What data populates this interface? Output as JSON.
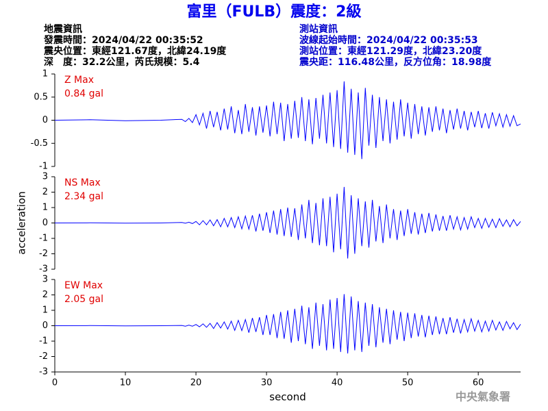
{
  "header": {
    "title": "富里（FULB）震度：2級",
    "left": [
      "地震資訊",
      "發震時間：2024/04/22 00:35:52",
      "震央位置：東經121.67度，北緯24.19度",
      "深　度：32.2公里，芮氏規模：5.4"
    ],
    "right": [
      "測站資訊",
      "波線起始時間：2024/04/22 00:35:53",
      "測站位置：東經121.29度，北緯23.20度",
      "震央距：116.48公里，反方位角：18.98度"
    ]
  },
  "watermark": "中央氣象署",
  "chart_data": [
    {
      "type": "line",
      "annotations": [
        "Z Max",
        "0.84 gal"
      ],
      "color": "#0000ff",
      "xlim": [
        0,
        66
      ],
      "ylim": [
        -1,
        1
      ],
      "yticks": [
        -1,
        -0.5,
        0,
        0.5,
        1
      ],
      "x": [
        0,
        5,
        10,
        15,
        18,
        18.5,
        19,
        19.5,
        20,
        20.5,
        21,
        21.5,
        22,
        22.5,
        23,
        23.5,
        24,
        24.5,
        25,
        25.5,
        26,
        26.5,
        27,
        27.5,
        28,
        28.5,
        29,
        29.5,
        30,
        30.5,
        31,
        31.5,
        32,
        32.5,
        33,
        33.5,
        34,
        34.5,
        35,
        35.5,
        36,
        36.5,
        37,
        37.5,
        38,
        38.5,
        39,
        39.5,
        40,
        40.5,
        41,
        41.5,
        42,
        42.5,
        43,
        43.5,
        44,
        44.5,
        45,
        45.5,
        46,
        46.5,
        47,
        47.5,
        48,
        48.5,
        49,
        49.5,
        50,
        50.5,
        51,
        51.5,
        52,
        52.5,
        53,
        53.5,
        54,
        54.5,
        55,
        55.5,
        56,
        56.5,
        57,
        57.5,
        58,
        58.5,
        59,
        59.5,
        60,
        60.5,
        61,
        61.5,
        62,
        62.5,
        63,
        63.5,
        64,
        64.5,
        65,
        65.5,
        66
      ],
      "values": [
        0,
        0.01,
        -0.01,
        0,
        0.02,
        -0.03,
        0.04,
        -0.05,
        0.12,
        -0.1,
        0.15,
        -0.18,
        0.2,
        -0.15,
        0.18,
        -0.22,
        0.25,
        -0.2,
        0.3,
        -0.28,
        0.22,
        -0.3,
        0.35,
        -0.25,
        0.28,
        -0.33,
        0.3,
        -0.27,
        0.32,
        -0.35,
        0.4,
        -0.3,
        0.38,
        -0.45,
        0.35,
        -0.4,
        0.42,
        -0.38,
        0.5,
        -0.45,
        0.45,
        -0.52,
        0.48,
        -0.4,
        0.55,
        -0.5,
        0.6,
        -0.58,
        0.65,
        -0.62,
        0.84,
        -0.7,
        0.68,
        -0.75,
        0.6,
        -0.84,
        0.7,
        -0.55,
        0.55,
        -0.6,
        0.5,
        -0.45,
        0.45,
        -0.5,
        0.4,
        -0.42,
        0.45,
        -0.35,
        0.38,
        -0.4,
        0.35,
        -0.3,
        0.3,
        -0.33,
        0.28,
        -0.25,
        0.3,
        -0.22,
        0.25,
        -0.28,
        0.22,
        -0.2,
        0.25,
        -0.18,
        0.2,
        -0.22,
        0.18,
        -0.15,
        0.2,
        -0.17,
        0.15,
        -0.18,
        0.17,
        -0.12,
        0.14,
        -0.15,
        0.12,
        -0.13,
        0.1,
        -0.12,
        -0.08
      ]
    },
    {
      "type": "line",
      "annotations": [
        "NS Max",
        "2.34 gal"
      ],
      "ylabel": "acceleration",
      "color": "#0000ff",
      "xlim": [
        0,
        66
      ],
      "ylim": [
        -3,
        3
      ],
      "yticks": [
        -3,
        -2,
        -1,
        0,
        1,
        2,
        3
      ],
      "x": [
        0,
        5,
        10,
        15,
        18,
        18.5,
        19,
        19.5,
        20,
        20.5,
        21,
        21.5,
        22,
        22.5,
        23,
        23.5,
        24,
        24.5,
        25,
        25.5,
        26,
        26.5,
        27,
        27.5,
        28,
        28.5,
        29,
        29.5,
        30,
        30.5,
        31,
        31.5,
        32,
        32.5,
        33,
        33.5,
        34,
        34.5,
        35,
        35.5,
        36,
        36.5,
        37,
        37.5,
        38,
        38.5,
        39,
        39.5,
        40,
        40.5,
        41,
        41.5,
        42,
        42.5,
        43,
        43.5,
        44,
        44.5,
        45,
        45.5,
        46,
        46.5,
        47,
        47.5,
        48,
        48.5,
        49,
        49.5,
        50,
        50.5,
        51,
        51.5,
        52,
        52.5,
        53,
        53.5,
        54,
        54.5,
        55,
        55.5,
        56,
        56.5,
        57,
        57.5,
        58,
        58.5,
        59,
        59.5,
        60,
        60.5,
        61,
        61.5,
        62,
        62.5,
        63,
        63.5,
        64,
        64.5,
        65,
        65.5,
        66
      ],
      "values": [
        0,
        0.01,
        -0.01,
        0,
        0.03,
        -0.02,
        0.05,
        -0.04,
        0.1,
        -0.12,
        0.15,
        -0.12,
        0.2,
        -0.18,
        0.22,
        -0.25,
        0.3,
        -0.25,
        0.35,
        -0.3,
        0.4,
        -0.38,
        0.45,
        -0.4,
        0.5,
        -0.55,
        0.6,
        -0.5,
        0.7,
        -0.65,
        0.8,
        -0.75,
        0.9,
        -0.85,
        1.0,
        -0.9,
        0.95,
        -1.1,
        1.2,
        -1.0,
        1.5,
        -1.3,
        1.3,
        -1.45,
        1.6,
        -1.5,
        1.7,
        -1.9,
        1.9,
        -1.7,
        2.34,
        -2.3,
        1.8,
        -2.0,
        1.6,
        -1.5,
        1.4,
        -1.6,
        1.5,
        -1.2,
        1.1,
        -1.3,
        1.2,
        -1.0,
        0.9,
        -1.1,
        0.8,
        -0.85,
        0.9,
        -0.7,
        0.7,
        -0.75,
        0.6,
        -0.65,
        0.65,
        -0.55,
        0.55,
        -0.5,
        0.45,
        -0.5,
        0.5,
        -0.4,
        0.4,
        -0.45,
        0.35,
        -0.4,
        0.4,
        -0.3,
        0.3,
        -0.35,
        0.3,
        -0.28,
        0.25,
        -0.3,
        0.28,
        -0.22,
        0.2,
        -0.25,
        0.22,
        -0.18,
        0.1
      ]
    },
    {
      "type": "line",
      "annotations": [
        "EW Max",
        "2.05 gal"
      ],
      "xlabel": "second",
      "color": "#0000ff",
      "xlim": [
        0,
        66
      ],
      "xticks": [
        0,
        10,
        20,
        30,
        40,
        50,
        60
      ],
      "ylim": [
        -3,
        3
      ],
      "yticks": [
        -3,
        -2,
        -1,
        0,
        1,
        2,
        3
      ],
      "x": [
        0,
        5,
        10,
        15,
        18,
        18.5,
        19,
        19.5,
        20,
        20.5,
        21,
        21.5,
        22,
        22.5,
        23,
        23.5,
        24,
        24.5,
        25,
        25.5,
        26,
        26.5,
        27,
        27.5,
        28,
        28.5,
        29,
        29.5,
        30,
        30.5,
        31,
        31.5,
        32,
        32.5,
        33,
        33.5,
        34,
        34.5,
        35,
        35.5,
        36,
        36.5,
        37,
        37.5,
        38,
        38.5,
        39,
        39.5,
        40,
        40.5,
        41,
        41.5,
        42,
        42.5,
        43,
        43.5,
        44,
        44.5,
        45,
        45.5,
        46,
        46.5,
        47,
        47.5,
        48,
        48.5,
        49,
        49.5,
        50,
        50.5,
        51,
        51.5,
        52,
        52.5,
        53,
        53.5,
        54,
        54.5,
        55,
        55.5,
        56,
        56.5,
        57,
        57.5,
        58,
        58.5,
        59,
        59.5,
        60,
        60.5,
        61,
        61.5,
        62,
        62.5,
        63,
        63.5,
        64,
        64.5,
        65,
        65.5,
        66
      ],
      "values": [
        0,
        0.01,
        -0.01,
        0,
        0.02,
        -0.03,
        0.04,
        -0.03,
        0.08,
        -0.07,
        0.12,
        -0.1,
        0.15,
        -0.18,
        0.2,
        -0.15,
        0.25,
        -0.22,
        0.3,
        -0.3,
        0.35,
        -0.32,
        0.4,
        -0.45,
        0.5,
        -0.4,
        0.55,
        -0.6,
        0.7,
        -0.6,
        0.75,
        -0.8,
        0.9,
        -0.85,
        1.0,
        -1.1,
        1.1,
        -1.0,
        1.3,
        -1.2,
        1.2,
        -1.5,
        1.5,
        -1.3,
        1.4,
        -1.6,
        1.7,
        -1.5,
        1.8,
        -1.7,
        2.05,
        -1.8,
        1.9,
        -1.6,
        1.6,
        -1.7,
        1.5,
        -1.3,
        1.4,
        -1.4,
        1.2,
        -1.1,
        1.1,
        -1.2,
        1.0,
        -0.9,
        0.9,
        -1.0,
        0.85,
        -0.8,
        0.8,
        -0.7,
        0.7,
        -0.75,
        0.65,
        -0.6,
        0.6,
        -0.55,
        0.5,
        -0.55,
        0.55,
        -0.45,
        0.45,
        -0.5,
        0.4,
        -0.4,
        0.45,
        -0.35,
        0.35,
        -0.4,
        0.3,
        -0.35,
        0.35,
        -0.28,
        0.25,
        -0.3,
        0.28,
        -0.2,
        0.2,
        -0.25,
        0.1
      ]
    }
  ]
}
